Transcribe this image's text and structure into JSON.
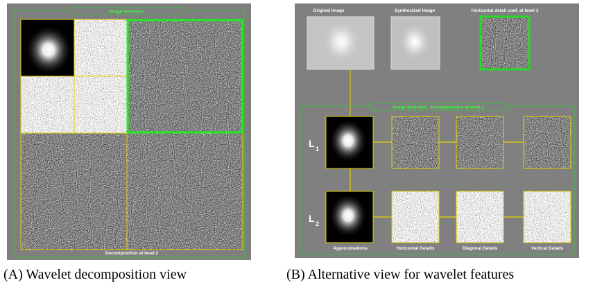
{
  "panels": {
    "a": {
      "title": "Image Selection",
      "footer": "Decomposition at level 2",
      "caption": "(A) Wavelet decomposition view"
    },
    "b": {
      "headers": [
        "Original Image",
        "Synthesized Image",
        "Horizontal detail coef. at level 1"
      ],
      "selection_title": "Image Selection : Decomposition at level 2",
      "levels": [
        {
          "letter": "L",
          "sub": "1"
        },
        {
          "letter": "L",
          "sub": "2"
        }
      ],
      "columns": [
        "Approximations",
        "Horizontal Details",
        "Diagonal Details",
        "Vertical Details"
      ],
      "caption": "(B) Alternative view for wavelet features"
    }
  }
}
